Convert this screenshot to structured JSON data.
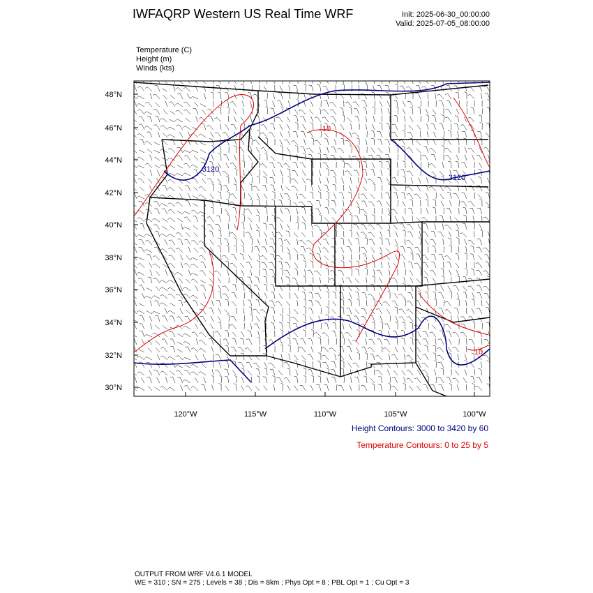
{
  "header": {
    "title": "IWFAQRP Western US Real Time WRF",
    "init": "Init: 2025-06-30_00:00:00",
    "valid": "Valid: 2025-07-05_08:00:00"
  },
  "fields": [
    "Temperature   (C)",
    "Height   (m)",
    "Winds   (kts)"
  ],
  "map": {
    "lat_labels": [
      "48°N",
      "46°N",
      "44°N",
      "42°N",
      "40°N",
      "38°N",
      "36°N",
      "34°N",
      "32°N",
      "30°N"
    ],
    "lon_labels": [
      "120°W",
      "115°W",
      "110°W",
      "105°W",
      "100°W"
    ],
    "contour_labels": [
      "3120",
      "3120",
      "10",
      "10"
    ]
  },
  "legend": {
    "height": "Height Contours: 3000 to 3420 by 60",
    "temperature": "Temperature Contours: 0 to 25 by 5"
  },
  "footer": {
    "line1": "OUTPUT FROM WRF V4.6.1 MODEL",
    "line2": "WE = 310 ; SN = 275 ; Levels = 38 ; Dis = 8km ; Phys Opt = 8 ; PBL Opt = 1 ; Cu Opt = 3"
  }
}
